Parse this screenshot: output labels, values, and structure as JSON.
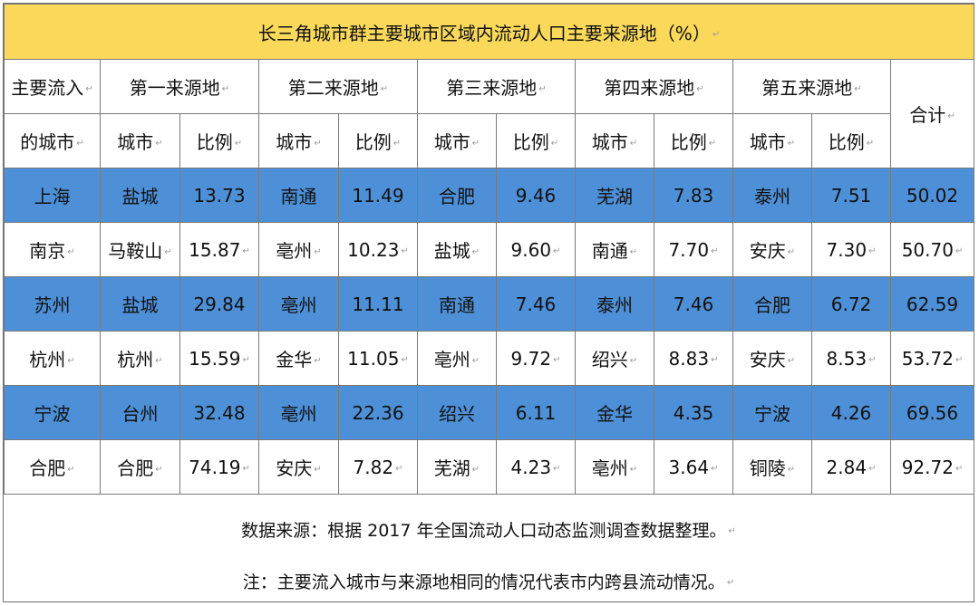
{
  "title": "长三角城市群主要城市区域内流动人口主要来源地（%）",
  "header": {
    "inflow_city_line1": "主要流入",
    "inflow_city_line2": "的城市",
    "source_groups": [
      "第一来源地",
      "第二来源地",
      "第三来源地",
      "第四来源地",
      "第五来源地"
    ],
    "city_label": "城市",
    "ratio_label": "比例",
    "total_label": "合计"
  },
  "rows": [
    {
      "city": "上海",
      "s1_city": "盐城",
      "s1_pct": "13.73",
      "s2_city": "南通",
      "s2_pct": "11.49",
      "s3_city": "合肥",
      "s3_pct": "9.46",
      "s4_city": "芜湖",
      "s4_pct": "7.83",
      "s5_city": "泰州",
      "s5_pct": "7.51",
      "total": "50.02"
    },
    {
      "city": "南京",
      "s1_city": "马鞍山",
      "s1_pct": "15.87",
      "s2_city": "亳州",
      "s2_pct": "10.23",
      "s3_city": "盐城",
      "s3_pct": "9.60",
      "s4_city": "南通",
      "s4_pct": "7.70",
      "s5_city": "安庆",
      "s5_pct": "7.30",
      "total": "50.70"
    },
    {
      "city": "苏州",
      "s1_city": "盐城",
      "s1_pct": "29.84",
      "s2_city": "亳州",
      "s2_pct": "11.11",
      "s3_city": "南通",
      "s3_pct": "7.46",
      "s4_city": "泰州",
      "s4_pct": "7.46",
      "s5_city": "合肥",
      "s5_pct": "6.72",
      "total": "62.59"
    },
    {
      "city": "杭州",
      "s1_city": "杭州",
      "s1_pct": "15.59",
      "s2_city": "金华",
      "s2_pct": "11.05",
      "s3_city": "亳州",
      "s3_pct": "9.72",
      "s4_city": "绍兴",
      "s4_pct": "8.83",
      "s5_city": "安庆",
      "s5_pct": "8.53",
      "total": "53.72"
    },
    {
      "city": "宁波",
      "s1_city": "台州",
      "s1_pct": "32.48",
      "s2_city": "亳州",
      "s2_pct": "22.36",
      "s3_city": "绍兴",
      "s3_pct": "6.11",
      "s4_city": "金华",
      "s4_pct": "4.35",
      "s5_city": "宁波",
      "s5_pct": "4.26",
      "total": "69.56"
    },
    {
      "city": "合肥",
      "s1_city": "合肥",
      "s1_pct": "74.19",
      "s2_city": "安庆",
      "s2_pct": "7.82",
      "s3_city": "芜湖",
      "s3_pct": "4.23",
      "s4_city": "亳州",
      "s4_pct": "3.64",
      "s5_city": "铜陵",
      "s5_pct": "2.84",
      "total": "92.72"
    }
  ],
  "notes": {
    "source": "数据来源：根据 2017 年全国流动人口动态监测调查数据整理。",
    "note": "注：主要流入城市与来源地相同的情况代表市内跨县流动情况。"
  },
  "colors": {
    "title_bg": "#fad95a",
    "highlight_row_bg": "#4e90d7",
    "border": "#7a7a7a"
  },
  "paragraph_mark": "↵"
}
